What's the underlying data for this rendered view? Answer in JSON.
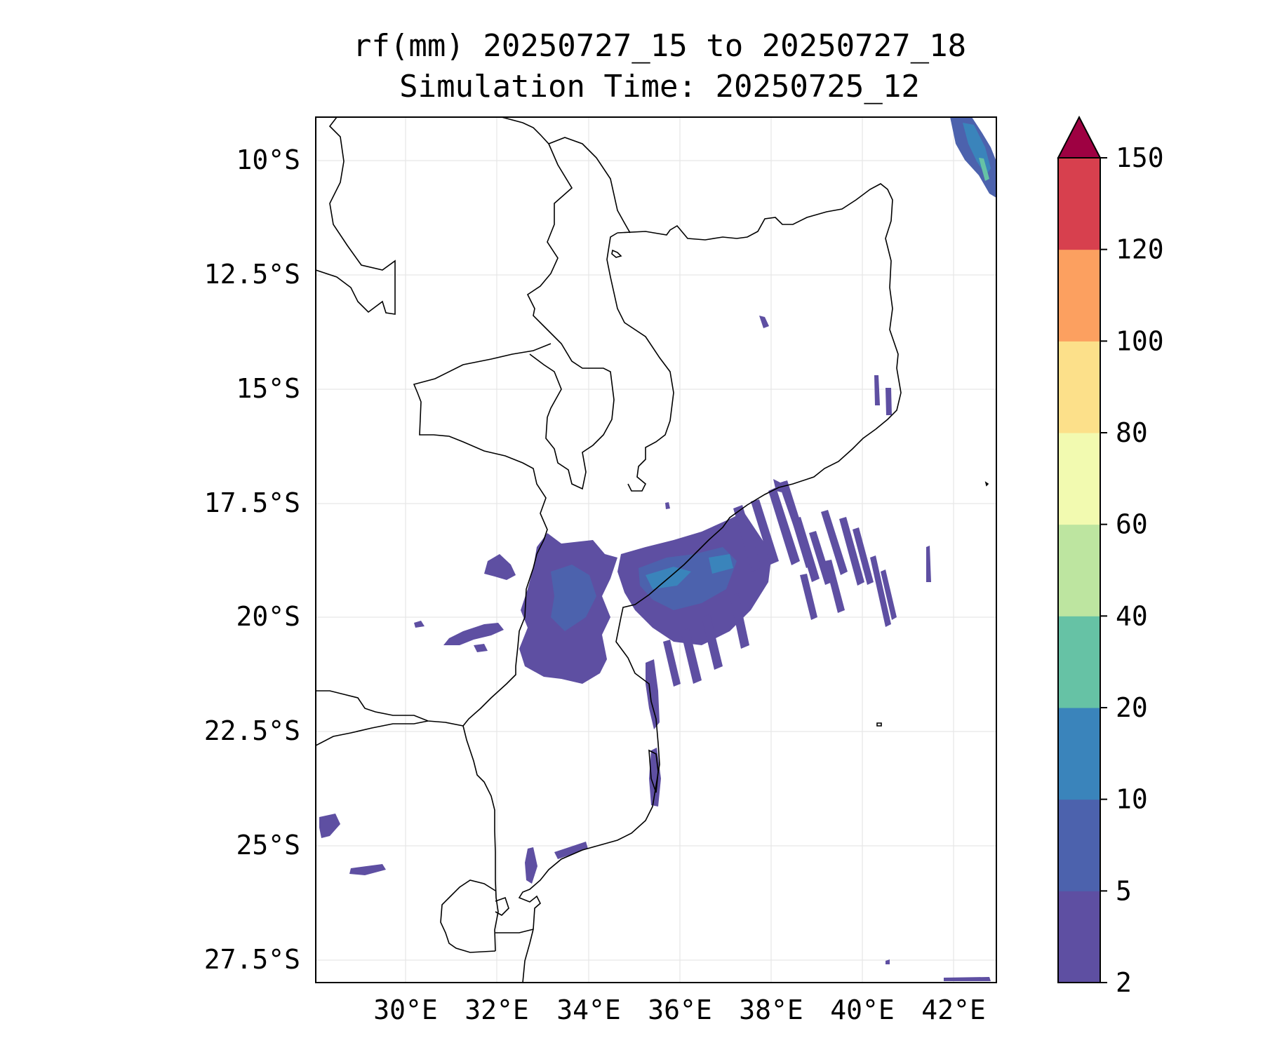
{
  "title": {
    "line1": "rf(mm) 20250727_15 to 20250727_18",
    "line2": "Simulation Time: 20250725_12"
  },
  "map": {
    "lat_ticks": [
      "10°S",
      "12.5°S",
      "15°S",
      "17.5°S",
      "20°S",
      "22.5°S",
      "25°S",
      "27.5°S"
    ],
    "lon_ticks": [
      "30°E",
      "32°E",
      "34°E",
      "36°E",
      "38°E",
      "40°E",
      "42°E"
    ],
    "grid": true,
    "variable": "rf",
    "unit": "mm"
  },
  "colorbar": {
    "levels": [
      "2",
      "5",
      "10",
      "20",
      "40",
      "60",
      "80",
      "100",
      "120",
      "150"
    ],
    "colors": [
      "#5e4fa2",
      "#4c62ad",
      "#3a84bb",
      "#66c2a5",
      "#bde5a0",
      "#f2fab0",
      "#fce08a",
      "#fca060",
      "#d7404e"
    ],
    "extend_color": "#9e0142",
    "extend": "max"
  },
  "legend_colors": {
    "coast": "#000000",
    "rain_light": "#5e4fa2",
    "rain_moderate": "#4c62ad",
    "rain_heavy": "#3a84bb",
    "rain_peak": "#66c2a5"
  }
}
